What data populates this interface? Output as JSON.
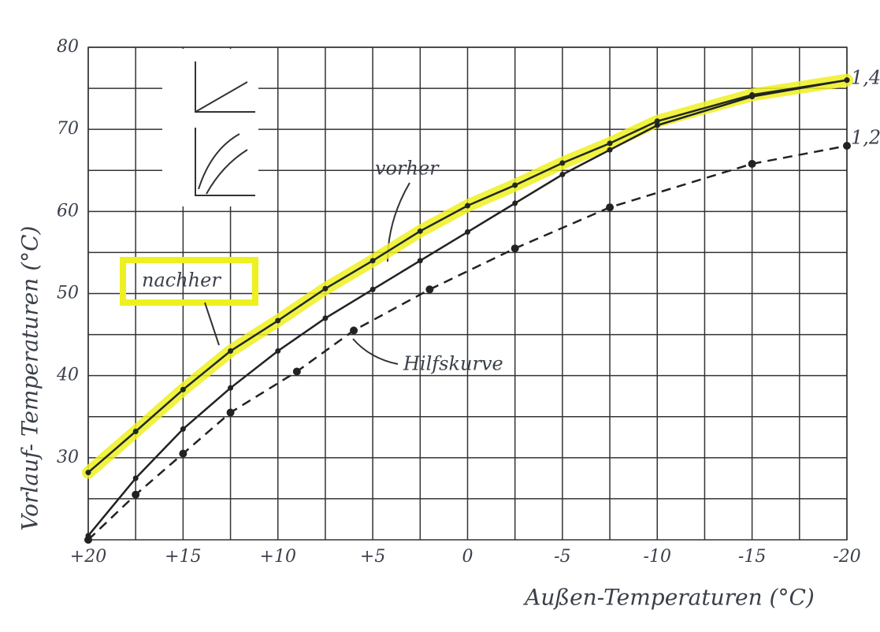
{
  "chart_data": {
    "type": "line",
    "y_label": "Vorlauf- Temperaturen (°C)",
    "x_label": "Außen-Temperaturen (°C)",
    "xlim": [
      20,
      -20
    ],
    "xticks": [
      {
        "value": 20,
        "label": "+20"
      },
      {
        "value": 15,
        "label": "+15"
      },
      {
        "value": 10,
        "label": "+10"
      },
      {
        "value": 5,
        "label": "+5"
      },
      0,
      -5,
      -10,
      -15,
      -20
    ],
    "ylim": [
      20,
      80
    ],
    "yticks": [
      30,
      40,
      50,
      60,
      70,
      80
    ],
    "grid": true,
    "series": [
      {
        "name": "nachher",
        "color": "#1f2a1f",
        "highlight": "#eef020",
        "dash": false,
        "x": [
          20,
          17.5,
          15,
          12.5,
          10,
          7.5,
          5,
          2.5,
          0,
          -2.5,
          -5,
          -7.5,
          -10,
          -15,
          -20
        ],
        "values": [
          28.2,
          33.2,
          38.3,
          43,
          46.7,
          50.6,
          54,
          57.6,
          60.7,
          63.2,
          65.9,
          68.3,
          71,
          74.2,
          76
        ]
      },
      {
        "name": "vorher",
        "color": "#222222",
        "dash": false,
        "x": [
          20,
          17.5,
          15,
          12.5,
          10,
          7.5,
          5,
          2.5,
          0,
          -2.5,
          -5,
          -7.5,
          -10,
          -15,
          -20
        ],
        "values": [
          20.5,
          27.5,
          33.5,
          38.5,
          43,
          47,
          50.5,
          54,
          57.5,
          61,
          64.5,
          67.5,
          70.5,
          74,
          76
        ]
      },
      {
        "name": "Hilfskurve",
        "color": "#222222",
        "dash": true,
        "x": [
          20,
          17.5,
          15,
          12.5,
          9,
          6,
          2,
          -2.5,
          -7.5,
          -15,
          -20
        ],
        "values": [
          20,
          25.5,
          30.5,
          35.5,
          40.5,
          45.5,
          50.5,
          55.5,
          60.5,
          65.8,
          68
        ]
      }
    ],
    "annotations": [
      "1,4",
      "1,2"
    ]
  }
}
